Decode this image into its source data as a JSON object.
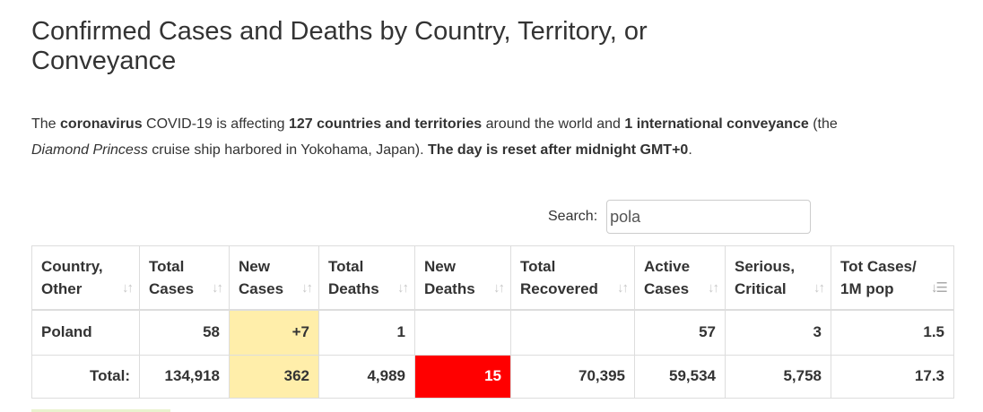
{
  "title": "Confirmed Cases and Deaths by Country, Territory, or Conveyance",
  "intro": {
    "p1": "The ",
    "b1": "coronavirus",
    "p2": " COVID-19 is affecting ",
    "b2": "127 countries and territories",
    "p3": " around the world and ",
    "b3": "1 international conveyance",
    "p4": " (the ",
    "i1": "Diamond Princess",
    "p5": " cruise ship harbored in Yokohama, Japan). ",
    "b4": "The day is reset after midnight GMT+0",
    "p6": "."
  },
  "search": {
    "label": "Search:",
    "value": "pola"
  },
  "table": {
    "headers": [
      {
        "line1": "Country,",
        "line2": "Other"
      },
      {
        "line1": "Total",
        "line2": "Cases"
      },
      {
        "line1": "New",
        "line2": "Cases"
      },
      {
        "line1": "Total",
        "line2": "Deaths"
      },
      {
        "line1": "New",
        "line2": "Deaths"
      },
      {
        "line1": "Total",
        "line2": "Recovered"
      },
      {
        "line1": "Active",
        "line2": "Cases"
      },
      {
        "line1": "Serious,",
        "line2": "Critical"
      },
      {
        "line1": "Tot Cases/",
        "line2": "1M pop"
      }
    ],
    "sort_icon": "sort-arrows-icon",
    "active_sort_icon": "sort-amount-down-icon",
    "rows": [
      {
        "country": "Poland",
        "total_cases": "58",
        "new_cases": "+7",
        "total_deaths": "1",
        "new_deaths": "",
        "total_recovered": "",
        "active_cases": "57",
        "serious_critical": "3",
        "per_million": "1.5"
      }
    ],
    "total": {
      "label": "Total:",
      "total_cases": "134,918",
      "new_cases": "362",
      "total_deaths": "4,989",
      "new_deaths": "15",
      "total_recovered": "70,395",
      "active_cases": "59,534",
      "serious_critical": "5,758",
      "per_million": "17.3"
    }
  },
  "colors": {
    "new_cases_bg": "#ffeeaa",
    "new_deaths_bg": "#ff0000",
    "border": "#dddddd",
    "text": "#333333"
  }
}
